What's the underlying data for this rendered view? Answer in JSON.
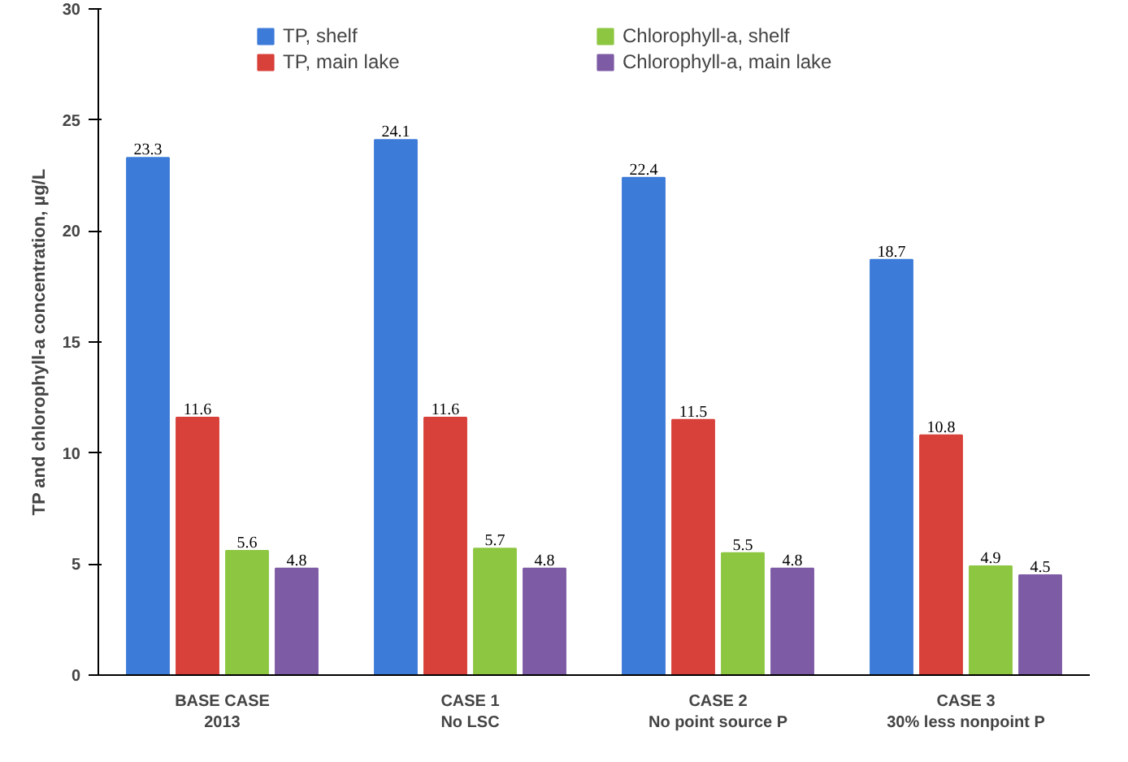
{
  "chart_data": {
    "type": "bar",
    "ylabel": "TP and chlorophyll-a concentration, µg/L",
    "categories": [
      "BASE CASE\n2013",
      "CASE 1\nNo LSC",
      "CASE 2\nNo point source P",
      "CASE 3\n30% less nonpoint P"
    ],
    "series": [
      {
        "name": "TP, shelf",
        "color": "#3d7bd9",
        "values": [
          23.3,
          24.1,
          22.4,
          18.7
        ]
      },
      {
        "name": "TP, main lake",
        "color": "#d8403a",
        "values": [
          11.6,
          11.6,
          11.5,
          10.8
        ]
      },
      {
        "name": "Chlorophyll-a, shelf",
        "color": "#8dc641",
        "values": [
          5.6,
          5.7,
          5.5,
          4.9
        ]
      },
      {
        "name": "Chlorophyll-a, main lake",
        "color": "#7e5ba5",
        "values": [
          4.8,
          4.8,
          4.8,
          4.5
        ]
      }
    ],
    "ylim": [
      0,
      30
    ],
    "yticks": [
      0,
      5,
      10,
      15,
      20,
      25,
      30
    ],
    "grid": false,
    "legend": "top",
    "data_labels": true
  }
}
